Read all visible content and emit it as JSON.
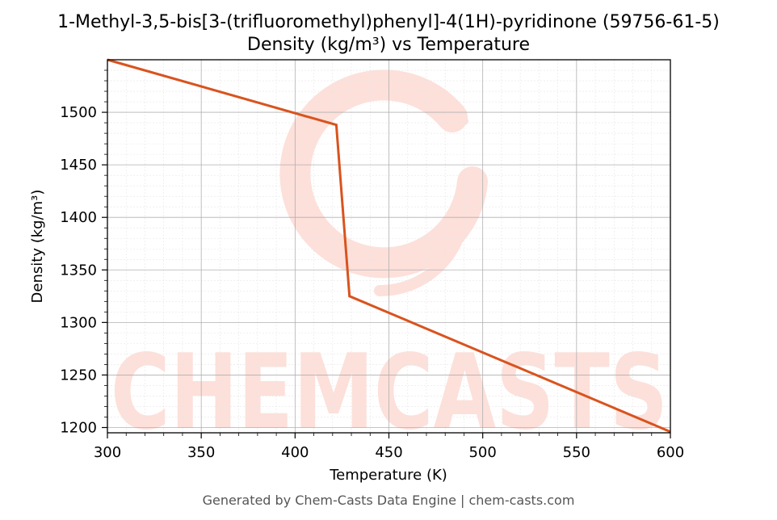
{
  "chart_data": {
    "type": "line",
    "title": "1-Methyl-3,5-bis[3-(trifluoromethyl)phenyl]-4(1H)-pyridinone (59756-61-5)",
    "subtitle": "Density (kg/m³) vs Temperature",
    "xlabel": "Temperature (K)",
    "ylabel": "Density (kg/m³)",
    "xlim": [
      300,
      600
    ],
    "ylim": [
      1195,
      1550
    ],
    "xticks": [
      300,
      350,
      400,
      450,
      500,
      550,
      600
    ],
    "yticks": [
      1200,
      1250,
      1300,
      1350,
      1400,
      1450,
      1500
    ],
    "grid": true,
    "series": [
      {
        "color": "#d9531e",
        "points": [
          [
            300,
            1550
          ],
          [
            422,
            1488
          ],
          [
            429,
            1325
          ],
          [
            600,
            1196
          ]
        ]
      }
    ],
    "watermark": "CHEMCASTS",
    "footer": "Generated by Chem-Casts Data Engine | chem-casts.com"
  }
}
